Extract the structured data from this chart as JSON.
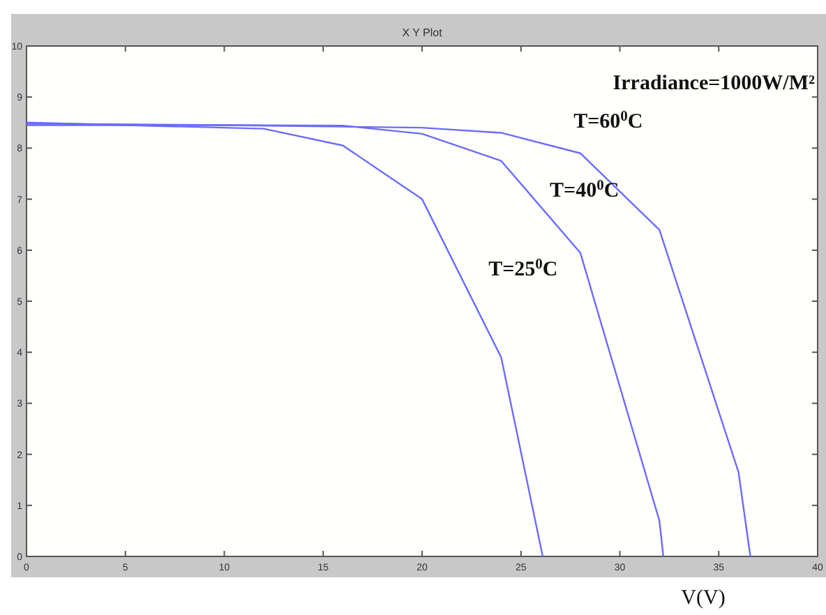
{
  "chart_data": {
    "type": "line",
    "title": "X Y Plot",
    "xlabel": "V(V)",
    "xlim": [
      0,
      40
    ],
    "xticks": [
      0,
      5,
      10,
      15,
      20,
      25,
      30,
      35,
      40
    ],
    "ylim": [
      0,
      10
    ],
    "yticks": [
      0,
      1,
      2,
      3,
      4,
      5,
      6,
      7,
      8,
      9,
      10
    ],
    "grid": false,
    "marker": "none",
    "line_style": "solid",
    "annotations": [
      "Irradiance=1000W/M²",
      "T=60$^{0}$C",
      "T=40$^{0}$C",
      "T=25$^{0}$C"
    ],
    "series": [
      {
        "color": "#6b6bff",
        "x": [
          0,
          12,
          16,
          20,
          24,
          26.1
        ],
        "values": [
          8.5,
          8.38,
          8.05,
          7.0,
          3.9,
          0
        ]
      },
      {
        "color": "#6b6bff",
        "x": [
          0,
          10,
          16,
          20,
          24,
          28,
          32,
          32.2
        ],
        "values": [
          8.45,
          8.45,
          8.44,
          8.28,
          7.75,
          5.95,
          0.7,
          0
        ]
      },
      {
        "color": "#6b6bff",
        "x": [
          0,
          10,
          20,
          24,
          28,
          32,
          36,
          36.6
        ],
        "values": [
          8.48,
          8.45,
          8.4,
          8.3,
          7.9,
          6.4,
          1.65,
          0
        ]
      }
    ]
  }
}
